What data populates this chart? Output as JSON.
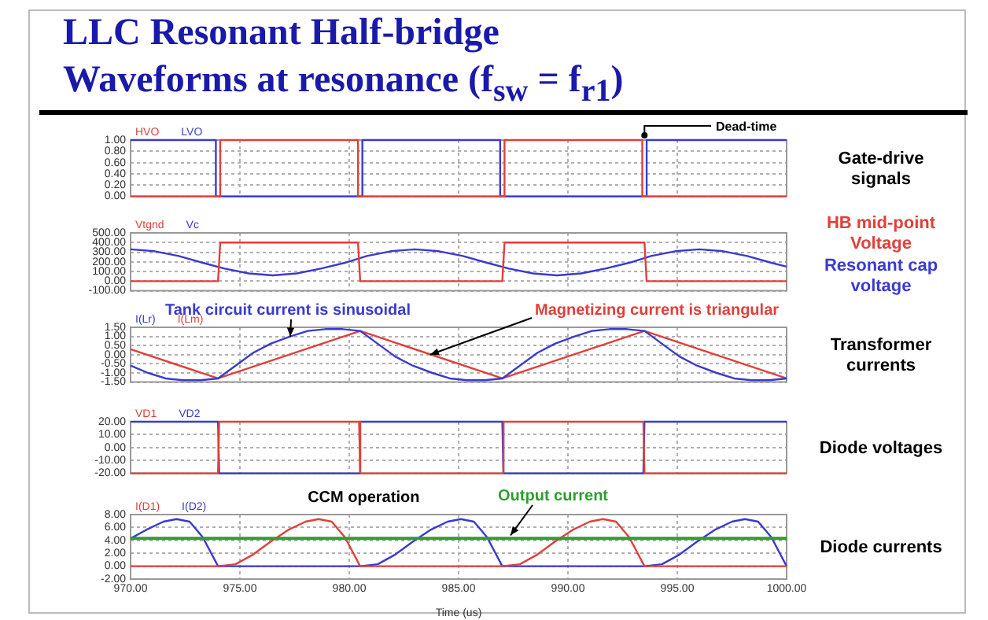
{
  "chart_data": [
    {
      "type": "line",
      "title": "LLC Resonant Half-bridge\nWaveforms at resonance (f$_{sw}$ = f$_{r1}$)",
      "annotations": [
        "Gate-drive signals",
        {
          "text": "Dead-time",
          "x": 993.5,
          "y": 1
        }
      ],
      "legend": "top left",
      "grid": true,
      "tick_labels": "y",
      "xlim": [
        970,
        1000
      ],
      "xticks": [
        970,
        975,
        980,
        985,
        990,
        995,
        1000
      ],
      "ylim": [
        0,
        1
      ],
      "yticks": [
        {
          "value": 0,
          "label": "0.00"
        },
        {
          "value": 0.2,
          "label": "0.20"
        },
        {
          "value": 0.4,
          "label": "0.40"
        },
        {
          "value": 0.6,
          "label": "0.60"
        },
        {
          "value": 0.8,
          "label": "0.80"
        },
        {
          "value": 1,
          "label": "1.00"
        }
      ],
      "series": [
        {
          "name": "HVO",
          "color": "#e0403a",
          "x": [
            970,
            974.1,
            974.1,
            980.4,
            980.4,
            987.1,
            987.1,
            993.4,
            993.4,
            1000
          ],
          "values": [
            0,
            0,
            1,
            1,
            0,
            0,
            1,
            1,
            0,
            0
          ]
        },
        {
          "name": "LVO",
          "color": "#3a3ad0",
          "x": [
            970,
            973.9,
            973.9,
            980.6,
            980.6,
            986.9,
            986.9,
            993.6,
            993.6,
            1000
          ],
          "values": [
            1,
            1,
            0,
            0,
            1,
            1,
            0,
            0,
            1,
            1
          ]
        }
      ]
    },
    {
      "type": "line",
      "annotations": [
        "HB mid-point Voltage",
        "Resonant cap voltage"
      ],
      "legend": "top left",
      "grid": true,
      "tick_labels": "y",
      "xlim": [
        970,
        1000
      ],
      "xticks": [
        970,
        975,
        980,
        985,
        990,
        995,
        1000
      ],
      "ylim": [
        -100,
        500
      ],
      "yticks": [
        {
          "value": -100,
          "label": "-100.00"
        },
        {
          "value": 0,
          "label": "0.00"
        },
        {
          "value": 100,
          "label": "100.00"
        },
        {
          "value": 200,
          "label": "200.00"
        },
        {
          "value": 300,
          "label": "300.00"
        },
        {
          "value": 400,
          "label": "400.00"
        },
        {
          "value": 500,
          "label": "500.00"
        }
      ],
      "series": [
        {
          "name": "Vtgnd",
          "color": "#e0403a",
          "x": [
            970,
            974,
            974.1,
            980.4,
            980.5,
            987,
            987.1,
            993.5,
            993.6,
            1000
          ],
          "values": [
            0,
            0,
            400,
            400,
            0,
            0,
            400,
            400,
            0,
            0
          ]
        },
        {
          "name": "Vc",
          "color": "#3a3ad0",
          "x": [
            970,
            971.1,
            972.2,
            973.3,
            974.3,
            975.4,
            976.5,
            977.6,
            978.7,
            979.8,
            980.8,
            981.9,
            983,
            984.1,
            985.2,
            986.3,
            987.3,
            988.4,
            989.5,
            990.6,
            991.7,
            992.8,
            993.8,
            994.9,
            996,
            997.1,
            998.2,
            999.3,
            1000
          ],
          "values": [
            330,
            310,
            260,
            190,
            130,
            80,
            60,
            80,
            130,
            190,
            260,
            310,
            330,
            310,
            260,
            190,
            130,
            80,
            60,
            80,
            130,
            190,
            260,
            310,
            330,
            310,
            260,
            190,
            150
          ]
        }
      ]
    },
    {
      "type": "line",
      "annotations": [
        "Transformer currents",
        {
          "text": "Tank circuit current is sinusoidal",
          "x": 977.3,
          "y": 1
        },
        {
          "text": "Magnetizing current is triangular",
          "x": 983.7,
          "y": 0
        }
      ],
      "legend": "top left",
      "grid": true,
      "tick_labels": "y",
      "xlim": [
        970,
        1000
      ],
      "xticks": [
        970,
        975,
        980,
        985,
        990,
        995,
        1000
      ],
      "ylim": [
        -1.5,
        1.5
      ],
      "yticks": [
        {
          "value": -1.5,
          "label": "-1.50"
        },
        {
          "value": -1,
          "label": "-1.00"
        },
        {
          "value": -0.5,
          "label": "-0.50"
        },
        {
          "value": 0,
          "label": "0.00"
        },
        {
          "value": 0.5,
          "label": "0.50"
        },
        {
          "value": 1,
          "label": "1.00"
        },
        {
          "value": 1.5,
          "label": "1.50"
        }
      ],
      "series": [
        {
          "name": "I(Lr)",
          "color": "#3a3ad0",
          "x": [
            970,
            970.8,
            971.6,
            972.4,
            973.2,
            974,
            974.8,
            975.6,
            976.4,
            977.3,
            978.1,
            978.9,
            979.7,
            980.5,
            981.3,
            982.1,
            982.9,
            983.8,
            984.6,
            985.4,
            986.2,
            987,
            987.8,
            988.6,
            989.4,
            990.3,
            991.1,
            991.9,
            992.7,
            993.5,
            994.3,
            995.1,
            995.9,
            996.8,
            997.6,
            998.4,
            999.2,
            1000
          ],
          "values": [
            -0.6,
            -1.0,
            -1.3,
            -1.4,
            -1.4,
            -1.3,
            -0.6,
            0.1,
            0.6,
            1.0,
            1.3,
            1.4,
            1.4,
            1.3,
            0.6,
            -0.1,
            -0.6,
            -1.0,
            -1.3,
            -1.4,
            -1.4,
            -1.3,
            -0.6,
            0.1,
            0.6,
            1.0,
            1.3,
            1.4,
            1.4,
            1.3,
            0.6,
            -0.1,
            -0.6,
            -1.0,
            -1.3,
            -1.4,
            -1.4,
            -1.3
          ]
        },
        {
          "name": "I(Lm)",
          "color": "#e0403a",
          "x": [
            970,
            974,
            980.5,
            987,
            993.5,
            1000
          ],
          "values": [
            0.3,
            -1.3,
            1.3,
            -1.3,
            1.3,
            -1.3
          ]
        }
      ]
    },
    {
      "type": "line",
      "annotations": [
        "Diode voltages"
      ],
      "legend": "top left",
      "grid": true,
      "tick_labels": "y",
      "xlim": [
        970,
        1000
      ],
      "xticks": [
        970,
        975,
        980,
        985,
        990,
        995,
        1000
      ],
      "ylim": [
        -20,
        20
      ],
      "yticks": [
        {
          "value": -20,
          "label": "-20.00"
        },
        {
          "value": -10,
          "label": "-10.00"
        },
        {
          "value": 0,
          "label": "0.00"
        },
        {
          "value": 10,
          "label": "10.00"
        },
        {
          "value": 20,
          "label": "20.00"
        }
      ],
      "series": [
        {
          "name": "VD1",
          "color": "#e0403a",
          "x": [
            970,
            974,
            974.05,
            980.45,
            980.5,
            987,
            987.05,
            993.45,
            993.5,
            1000
          ],
          "values": [
            -20,
            -20,
            20,
            20,
            -20,
            -20,
            20,
            20,
            -20,
            -20
          ]
        },
        {
          "name": "VD2",
          "color": "#3a3ad0",
          "x": [
            970,
            974,
            974.05,
            980.45,
            980.5,
            987,
            987.05,
            993.45,
            993.5,
            1000
          ],
          "values": [
            20,
            20,
            -20,
            -20,
            20,
            20,
            -20,
            -20,
            20,
            20
          ]
        }
      ]
    },
    {
      "type": "line",
      "xlabel": "Time (us)",
      "annotations": [
        "Diode currents",
        "CCM operation"
      ],
      "ref_lines": [
        {
          "axis": "y",
          "value": 4.3,
          "label": "Output current",
          "color": "#2e9e2e"
        }
      ],
      "legend": "top left",
      "grid": true,
      "xlim": [
        970,
        1000
      ],
      "xticks": [
        {
          "value": 970,
          "label": "970.00"
        },
        {
          "value": 975,
          "label": "975.00"
        },
        {
          "value": 980,
          "label": "980.00"
        },
        {
          "value": 985,
          "label": "985.00"
        },
        {
          "value": 990,
          "label": "990.00"
        },
        {
          "value": 995,
          "label": "995.00"
        },
        {
          "value": 1000,
          "label": "1000.00"
        }
      ],
      "ylim": [
        -2,
        8
      ],
      "yticks": [
        {
          "value": -2,
          "label": "-2.00"
        },
        {
          "value": 0,
          "label": "0.00"
        },
        {
          "value": 2,
          "label": "2.00"
        },
        {
          "value": 4,
          "label": "4.00"
        },
        {
          "value": 6,
          "label": "6.00"
        },
        {
          "value": 8,
          "label": "8.00"
        }
      ],
      "series": [
        {
          "name": "I(D1)",
          "color": "#e0403a",
          "x": [
            970,
            974,
            974.8,
            975.6,
            976.4,
            977.2,
            978,
            978.6,
            979.2,
            979.8,
            980.5,
            987,
            987.8,
            988.6,
            989.4,
            990.2,
            991,
            991.6,
            992.2,
            992.8,
            993.5,
            1000
          ],
          "values": [
            0,
            0,
            0.3,
            1.8,
            3.8,
            5.6,
            6.9,
            7.3,
            6.9,
            4.5,
            0,
            0,
            0.3,
            1.8,
            3.8,
            5.6,
            6.9,
            7.3,
            6.9,
            4.5,
            0,
            0
          ]
        },
        {
          "name": "I(D2)",
          "color": "#3a3ad0",
          "x": [
            970,
            970.7,
            971.5,
            972.1,
            972.7,
            973.3,
            974,
            980.5,
            981.3,
            982.1,
            982.9,
            983.7,
            984.5,
            985.1,
            985.7,
            986.3,
            987,
            993.5,
            994.3,
            995.1,
            995.9,
            996.7,
            997.5,
            998.1,
            998.7,
            999.3,
            1000
          ],
          "values": [
            4.3,
            5.6,
            6.9,
            7.3,
            6.9,
            4.5,
            0,
            0,
            0.3,
            1.8,
            3.8,
            5.6,
            6.9,
            7.3,
            6.9,
            4.5,
            0,
            0,
            0.3,
            1.8,
            3.8,
            5.6,
            6.9,
            7.3,
            6.9,
            4.5,
            0
          ]
        }
      ]
    }
  ]
}
